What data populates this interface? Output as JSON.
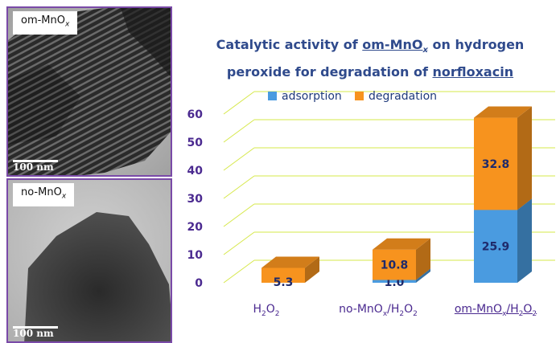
{
  "panels": {
    "top": {
      "label_main": "om-MnO",
      "label_sub": "x",
      "scale_text": "100 nm"
    },
    "bottom": {
      "label_main": "no-MnO",
      "label_sub": "x",
      "scale_text": "100 nm"
    }
  },
  "title_parts": {
    "line1_pre": "Catalytic activity of ",
    "line1_u": "om-MnO",
    "line1_sub": "x",
    "line1_post": " on hydrogen",
    "line2_pre": "peroxide for degradation of ",
    "line2_u": "norfloxacin"
  },
  "xlabels": [
    {
      "pre": "H",
      "s1": "2",
      "mid": "O",
      "s2": "2",
      "post": ""
    },
    {
      "pre": "no-MnO",
      "s1": "x",
      "mid": "/H",
      "s2": "2",
      "post": "O",
      "s3": "2"
    },
    {
      "pre": "om-MnO",
      "s1": "x",
      "mid": "/H",
      "s2": "2",
      "post": "O",
      "s3": "2"
    }
  ],
  "chart_data": {
    "type": "bar",
    "stacked": true,
    "categories": [
      "H2O2",
      "no-MnOx/H2O2",
      "om-MnOx/H2O2"
    ],
    "series": [
      {
        "name": "adsorption",
        "values": [
          0,
          1.0,
          25.9
        ],
        "labels": [
          "",
          "1.0",
          "25.9"
        ],
        "color": "#4a9be0"
      },
      {
        "name": "degradation",
        "values": [
          5.3,
          10.8,
          32.8
        ],
        "labels": [
          "5.3",
          "10.8",
          "32.8"
        ],
        "color": "#f7931e"
      }
    ],
    "ylim": [
      0,
      60
    ],
    "yticks": [
      0,
      10,
      20,
      30,
      40,
      50,
      60
    ],
    "legend_position": "top",
    "grid": true,
    "label_color": "#1f2a6b",
    "tick_color": "#4b2a90"
  }
}
